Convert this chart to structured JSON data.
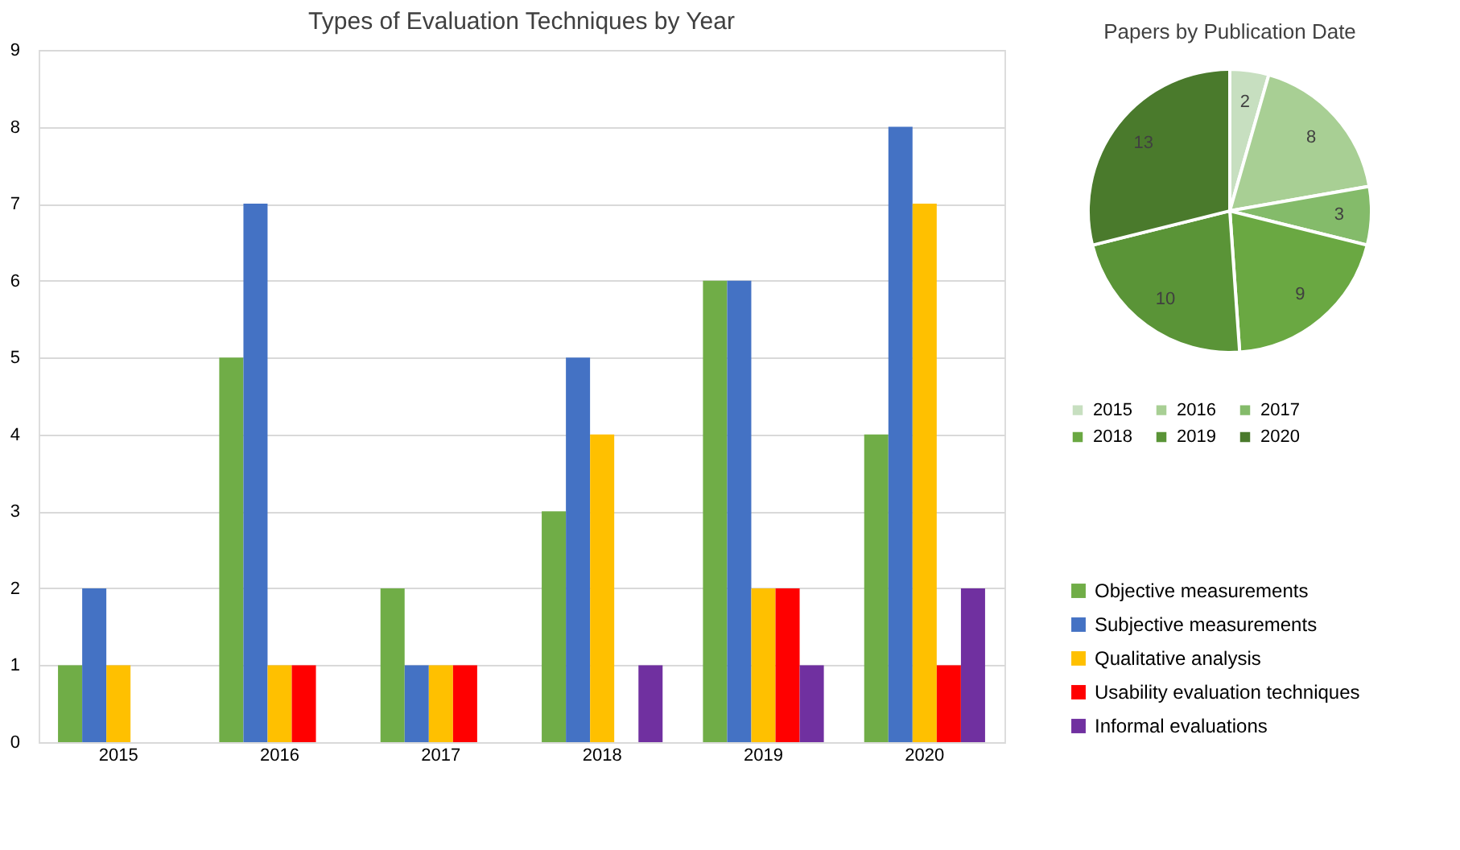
{
  "chart_data": [
    {
      "type": "bar",
      "title": "Types of Evaluation Techniques by Year",
      "categories": [
        "2015",
        "2016",
        "2017",
        "2018",
        "2019",
        "2020"
      ],
      "series": [
        {
          "name": "Objective measurements",
          "color": "#70ad47",
          "values": [
            1,
            5,
            2,
            3,
            6,
            4
          ]
        },
        {
          "name": "Subjective measurements",
          "color": "#4472c4",
          "values": [
            2,
            7,
            1,
            5,
            6,
            8
          ]
        },
        {
          "name": "Qualitative analysis",
          "color": "#ffc000",
          "values": [
            1,
            1,
            1,
            4,
            2,
            7
          ]
        },
        {
          "name": "Usability evaluation techniques",
          "color": "#ff0000",
          "values": [
            null,
            1,
            1,
            null,
            2,
            1
          ]
        },
        {
          "name": "Informal evaluations",
          "color": "#7030a0",
          "values": [
            null,
            null,
            null,
            1,
            1,
            2
          ]
        }
      ],
      "ylim": [
        0,
        9
      ],
      "yticks": [
        0,
        1,
        2,
        3,
        4,
        5,
        6,
        7,
        8,
        9
      ],
      "grid": "y",
      "legend": "bottom right"
    },
    {
      "type": "pie",
      "title": "Papers by Publication Date",
      "categories": [
        "2015",
        "2016",
        "2017",
        "2018",
        "2019",
        "2020"
      ],
      "values": [
        2,
        8,
        3,
        9,
        10,
        13
      ],
      "colors": [
        "#c7dfc0",
        "#a8cf94",
        "#84bb6a",
        "#6aa842",
        "#5a9437",
        "#4a7a2c"
      ],
      "data_labels": true,
      "legend": "bottom"
    }
  ]
}
